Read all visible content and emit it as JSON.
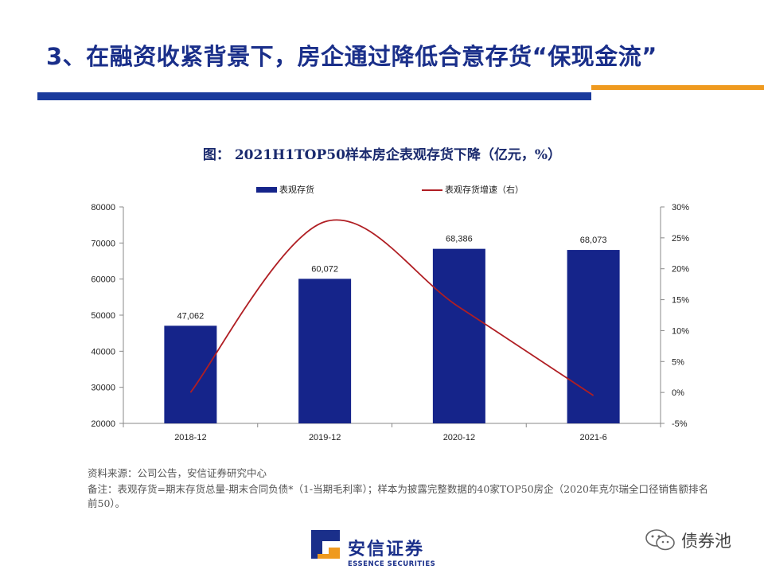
{
  "header": {
    "title": "3、在融资收紧背景下，房企通过降低合意存货“保现金流”"
  },
  "colors": {
    "title_blue": "#1a2f8a",
    "bar_blue": "#1a3a9c",
    "accent_orange": "#ef9a1f",
    "series_bar": "#15248a",
    "series_line": "#b01e23"
  },
  "chart_data": {
    "type": "bar",
    "title": "图：  2021H1TOP50样本房企表观存货下降（亿元，%）",
    "categories": [
      "2018-12",
      "2019-12",
      "2020-12",
      "2021-6"
    ],
    "series": [
      {
        "name": "表观存货",
        "type": "bar",
        "axis": "left",
        "values": [
          47062,
          60072,
          68386,
          68073
        ],
        "labels": [
          "47,062",
          "60,072",
          "68,386",
          "68,073"
        ]
      },
      {
        "name": "表观存货增速（右）",
        "type": "line",
        "axis": "right",
        "values": [
          0,
          27.6,
          13.8,
          -0.5
        ]
      }
    ],
    "y_left": {
      "min": 20000,
      "max": 80000,
      "step": 10000,
      "ticks": [
        "20000",
        "30000",
        "40000",
        "50000",
        "60000",
        "70000",
        "80000"
      ]
    },
    "y_right": {
      "min": -5,
      "max": 30,
      "step": 5,
      "ticks": [
        "-5%",
        "0%",
        "5%",
        "10%",
        "15%",
        "20%",
        "25%",
        "30%"
      ]
    },
    "legend": "top-center",
    "grid": false
  },
  "notes": {
    "source": "资料来源：公司公告，安信证券研究中心",
    "remark": "备注：表观存货=期末存货总量-期末合同负债*（1-当期毛利率）；样本为披露完整数据的40家TOP50房企（2020年克尔瑞全口径销售额排名前50）。"
  },
  "logo": {
    "cn": "安信证券",
    "en": "ESSENCE SECURITIES"
  },
  "watermark": {
    "text": "债券池",
    "icon": "wechat-icon"
  }
}
